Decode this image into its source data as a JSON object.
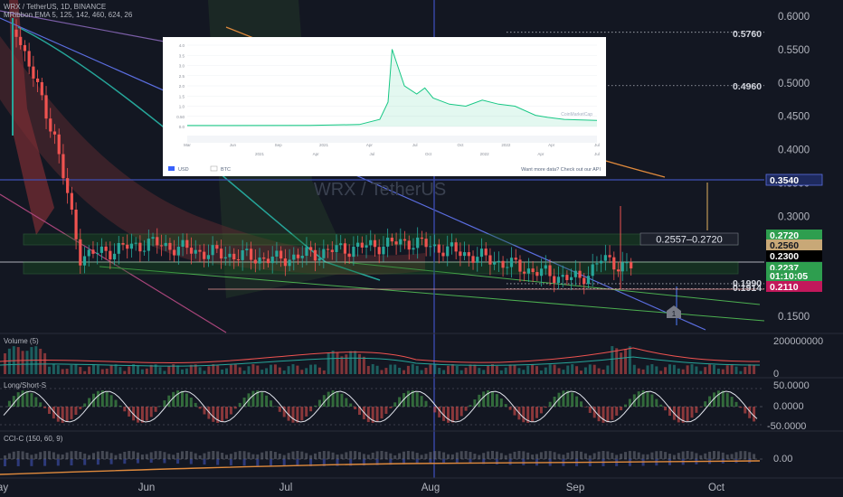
{
  "header": {
    "symbol_line": "WRX / TetherUS, 1D, BINANCE",
    "indicator_line": "MRibbon EMA 5, 125, 142, 460, 624, 26"
  },
  "watermark": "WRX / TetherUS",
  "colors": {
    "background": "#131722",
    "up": "#26a69a",
    "down": "#ef5350",
    "green_line": "#4caf50",
    "blue_line": "#5b6ee1",
    "orange_line": "#e08a3c",
    "navy_box": "#1e2a5e"
  },
  "price_axis": {
    "ticks": [
      "0.6000",
      "0.5500",
      "0.5000",
      "0.4500",
      "0.4000",
      "0.3500",
      "0.3000",
      "0.2500",
      "0.1500"
    ]
  },
  "price_labels": [
    {
      "text": "0.5760",
      "style": "plain"
    },
    {
      "text": "0.4960",
      "style": "plain"
    },
    {
      "text": "0.3540",
      "style": "navy"
    },
    {
      "text": "0.2720",
      "style": "green"
    },
    {
      "text": "0.2560",
      "style": "tan"
    },
    {
      "text": "0.2300",
      "style": "black"
    },
    {
      "text": "0.2237",
      "style": "green"
    },
    {
      "text": "01:10:05",
      "style": "green"
    },
    {
      "text": "0.1990",
      "style": "plain"
    },
    {
      "text": "0.1914",
      "style": "plain"
    },
    {
      "text": "0.2110",
      "style": "magenta"
    }
  ],
  "range_label": "0.2557–0.2720",
  "marker_label": "1",
  "inset": {
    "logo": "CoinMarketCap",
    "y_ticks": [
      "4.0",
      "3.5",
      "3.0",
      "2.5",
      "2.0",
      "1.5",
      "1.0",
      "0.50",
      "0.0"
    ],
    "x_ticks": [
      "Mar",
      "Jun",
      "Sep",
      "2021",
      "Apr",
      "Jul",
      "Oct",
      "2022",
      "Apr",
      "Jul"
    ],
    "nav_ticks": [
      "2021",
      "Apr",
      "Jul",
      "Oct",
      "2022",
      "Apr",
      "Jul"
    ],
    "legend": [
      "USD",
      "BTC"
    ],
    "footer": "Want more data? Check out our API"
  },
  "time_axis": {
    "ticks": [
      "ay",
      "Jun",
      "Jul",
      "Aug",
      "Sep",
      "Oct"
    ]
  },
  "panes": {
    "volume": {
      "title": "Volume (5)",
      "ticks": [
        "200000000",
        "0"
      ]
    },
    "longshort": {
      "title": "Long/Short-S",
      "ticks": [
        "50.0000",
        "0.0000",
        "-50.0000"
      ]
    },
    "cci": {
      "title": "CCI-C (150, 60, 9)",
      "ticks": [
        "0.00"
      ]
    }
  },
  "chart_data": [
    {
      "type": "candlestick",
      "title": "WRX / TetherUS, 1D, BINANCE",
      "x": [
        "Jun",
        "Jul",
        "Aug",
        "Sep",
        "Oct"
      ],
      "ylim": [
        0.13,
        0.62
      ],
      "horizontal_levels": [
        0.576,
        0.496,
        0.354,
        0.272,
        0.256,
        0.23,
        0.2237,
        0.211,
        0.199,
        0.1914
      ],
      "last_price": 0.2237,
      "approx_close_path": [
        {
          "x": "May 1",
          "y": 0.58
        },
        {
          "x": "May 10",
          "y": 0.42
        },
        {
          "x": "May 16",
          "y": 0.24
        },
        {
          "x": "Jun 1",
          "y": 0.26
        },
        {
          "x": "Jun 15",
          "y": 0.245
        },
        {
          "x": "Jul 1",
          "y": 0.235
        },
        {
          "x": "Jul 15",
          "y": 0.25
        },
        {
          "x": "Aug 1",
          "y": 0.262
        },
        {
          "x": "Aug 10",
          "y": 0.25
        },
        {
          "x": "Aug 20",
          "y": 0.235
        },
        {
          "x": "Sep 1",
          "y": 0.215
        },
        {
          "x": "Sep 10",
          "y": 0.205
        },
        {
          "x": "Sep 15",
          "y": 0.235
        },
        {
          "x": "Sep 22",
          "y": 0.2237
        }
      ]
    },
    {
      "type": "line",
      "title": "CoinMarketCap WRX price (USD)",
      "x": [
        "Mar",
        "Jun",
        "Sep",
        "2021",
        "Apr",
        "Jul",
        "Oct",
        "2022",
        "Apr",
        "Jul"
      ],
      "ylim": [
        0,
        4.0
      ],
      "values": [
        0.05,
        0.05,
        0.06,
        0.3,
        3.8,
        1.4,
        1.0,
        1.2,
        0.4,
        0.25
      ]
    }
  ]
}
